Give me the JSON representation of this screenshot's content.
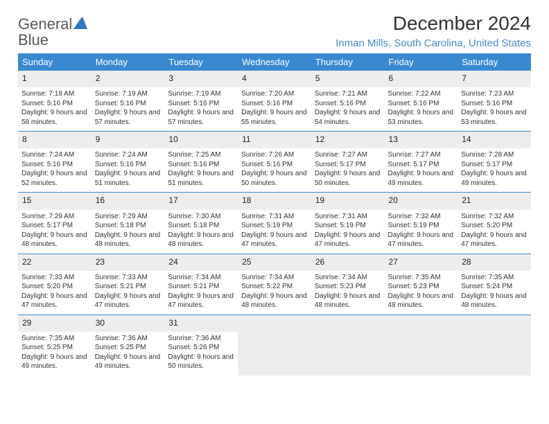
{
  "logo": {
    "word1": "General",
    "word2": "Blue"
  },
  "title": "December 2024",
  "location": "Inman Mills, South Carolina, United States",
  "colors": {
    "header_bg": "#3a89d0",
    "header_fg": "#ffffff",
    "location_fg": "#4a88c5",
    "row_head_bg": "#ededed",
    "row_sep": "#3a89d0",
    "logo_gray": "#5a5a5a",
    "logo_blue": "#2f78bf"
  },
  "day_headers": [
    "Sunday",
    "Monday",
    "Tuesday",
    "Wednesday",
    "Thursday",
    "Friday",
    "Saturday"
  ],
  "weeks": [
    [
      {
        "n": "1",
        "sr": "7:18 AM",
        "ss": "5:16 PM",
        "dl": "9 hours and 58 minutes."
      },
      {
        "n": "2",
        "sr": "7:19 AM",
        "ss": "5:16 PM",
        "dl": "9 hours and 57 minutes."
      },
      {
        "n": "3",
        "sr": "7:19 AM",
        "ss": "5:16 PM",
        "dl": "9 hours and 57 minutes."
      },
      {
        "n": "4",
        "sr": "7:20 AM",
        "ss": "5:16 PM",
        "dl": "9 hours and 55 minutes."
      },
      {
        "n": "5",
        "sr": "7:21 AM",
        "ss": "5:16 PM",
        "dl": "9 hours and 54 minutes."
      },
      {
        "n": "6",
        "sr": "7:22 AM",
        "ss": "5:16 PM",
        "dl": "9 hours and 53 minutes."
      },
      {
        "n": "7",
        "sr": "7:23 AM",
        "ss": "5:16 PM",
        "dl": "9 hours and 53 minutes."
      }
    ],
    [
      {
        "n": "8",
        "sr": "7:24 AM",
        "ss": "5:16 PM",
        "dl": "9 hours and 52 minutes."
      },
      {
        "n": "9",
        "sr": "7:24 AM",
        "ss": "5:16 PM",
        "dl": "9 hours and 51 minutes."
      },
      {
        "n": "10",
        "sr": "7:25 AM",
        "ss": "5:16 PM",
        "dl": "9 hours and 51 minutes."
      },
      {
        "n": "11",
        "sr": "7:26 AM",
        "ss": "5:16 PM",
        "dl": "9 hours and 50 minutes."
      },
      {
        "n": "12",
        "sr": "7:27 AM",
        "ss": "5:17 PM",
        "dl": "9 hours and 50 minutes."
      },
      {
        "n": "13",
        "sr": "7:27 AM",
        "ss": "5:17 PM",
        "dl": "9 hours and 49 minutes."
      },
      {
        "n": "14",
        "sr": "7:28 AM",
        "ss": "5:17 PM",
        "dl": "9 hours and 49 minutes."
      }
    ],
    [
      {
        "n": "15",
        "sr": "7:29 AM",
        "ss": "5:17 PM",
        "dl": "9 hours and 48 minutes."
      },
      {
        "n": "16",
        "sr": "7:29 AM",
        "ss": "5:18 PM",
        "dl": "9 hours and 48 minutes."
      },
      {
        "n": "17",
        "sr": "7:30 AM",
        "ss": "5:18 PM",
        "dl": "9 hours and 48 minutes."
      },
      {
        "n": "18",
        "sr": "7:31 AM",
        "ss": "5:19 PM",
        "dl": "9 hours and 47 minutes."
      },
      {
        "n": "19",
        "sr": "7:31 AM",
        "ss": "5:19 PM",
        "dl": "9 hours and 47 minutes."
      },
      {
        "n": "20",
        "sr": "7:32 AM",
        "ss": "5:19 PM",
        "dl": "9 hours and 47 minutes."
      },
      {
        "n": "21",
        "sr": "7:32 AM",
        "ss": "5:20 PM",
        "dl": "9 hours and 47 minutes."
      }
    ],
    [
      {
        "n": "22",
        "sr": "7:33 AM",
        "ss": "5:20 PM",
        "dl": "9 hours and 47 minutes."
      },
      {
        "n": "23",
        "sr": "7:33 AM",
        "ss": "5:21 PM",
        "dl": "9 hours and 47 minutes."
      },
      {
        "n": "24",
        "sr": "7:34 AM",
        "ss": "5:21 PM",
        "dl": "9 hours and 47 minutes."
      },
      {
        "n": "25",
        "sr": "7:34 AM",
        "ss": "5:22 PM",
        "dl": "9 hours and 48 minutes."
      },
      {
        "n": "26",
        "sr": "7:34 AM",
        "ss": "5:23 PM",
        "dl": "9 hours and 48 minutes."
      },
      {
        "n": "27",
        "sr": "7:35 AM",
        "ss": "5:23 PM",
        "dl": "9 hours and 48 minutes."
      },
      {
        "n": "28",
        "sr": "7:35 AM",
        "ss": "5:24 PM",
        "dl": "9 hours and 48 minutes."
      }
    ],
    [
      {
        "n": "29",
        "sr": "7:35 AM",
        "ss": "5:25 PM",
        "dl": "9 hours and 49 minutes."
      },
      {
        "n": "30",
        "sr": "7:36 AM",
        "ss": "5:25 PM",
        "dl": "9 hours and 49 minutes."
      },
      {
        "n": "31",
        "sr": "7:36 AM",
        "ss": "5:26 PM",
        "dl": "9 hours and 50 minutes."
      },
      null,
      null,
      null,
      null
    ]
  ],
  "labels": {
    "sunrise": "Sunrise:",
    "sunset": "Sunset:",
    "daylight": "Daylight:"
  }
}
